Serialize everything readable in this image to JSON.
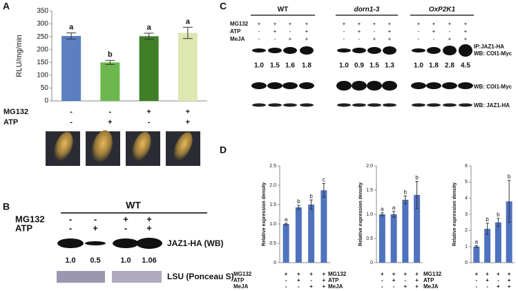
{
  "panel_labels": [
    "A",
    "B",
    "C",
    "D"
  ],
  "chart_data": [
    {
      "type": "bar",
      "y_label": "RLU/mg/min",
      "values": [
        253,
        150,
        252,
        265
      ],
      "errors": [
        12,
        8,
        12,
        22
      ],
      "colors": [
        "#5b7fc1",
        "#6cb84f",
        "#3f7f27",
        "#dde7b0"
      ],
      "annotations": [
        "a",
        "b",
        "a",
        "a"
      ],
      "ylim": [
        0,
        350
      ],
      "yticks": [
        0,
        50,
        100,
        150,
        200,
        250,
        300,
        350
      ],
      "treatments": [
        {
          "name": "MG132",
          "signs": [
            "-",
            "-",
            "+",
            "+"
          ]
        },
        {
          "name": "ATP",
          "signs": [
            "-",
            "+",
            "-",
            "+"
          ]
        }
      ]
    },
    {
      "type": "bar",
      "y_label": "Relative expression density",
      "values": [
        1.0,
        1.43,
        1.5,
        1.87
      ],
      "errors": [
        0.02,
        0.05,
        0.12,
        0.18
      ],
      "color": "#4f72be",
      "annotations": [
        "a",
        "b",
        "b",
        "c"
      ],
      "ylim": [
        0,
        2.5
      ],
      "yticks": [
        0,
        0.5,
        {
          "value": 1,
          "label": "1.0"
        },
        1.5,
        {
          "value": 2,
          "label": "2.0"
        },
        2.5
      ],
      "treatments": [
        {
          "name": "MG132",
          "signs": [
            "+",
            "+",
            "+",
            "+"
          ]
        },
        {
          "name": "ATP",
          "signs": [
            "-",
            "+",
            "-",
            "+"
          ]
        },
        {
          "name": "MeJA",
          "signs": [
            "-",
            "-",
            "+",
            "+"
          ]
        }
      ]
    },
    {
      "type": "bar",
      "y_label": "Relative expression density",
      "values": [
        1.0,
        1.0,
        1.3,
        1.4
      ],
      "errors": [
        0.03,
        0.06,
        0.08,
        0.28
      ],
      "color": "#4f72be",
      "annotations": [
        "a",
        "a",
        "b",
        "b"
      ],
      "ylim": [
        0,
        2
      ],
      "yticks": [
        0,
        0.5,
        {
          "value": 1,
          "label": "1.0"
        },
        1.5,
        {
          "value": 2,
          "label": "2.0"
        }
      ],
      "treatments": [
        {
          "name": "MG132",
          "signs": [
            "+",
            "+",
            "+",
            "+"
          ]
        },
        {
          "name": "ATP",
          "signs": [
            "-",
            "+",
            "-",
            "+"
          ]
        },
        {
          "name": "MeJA",
          "signs": [
            "-",
            "-",
            "+",
            "+"
          ]
        }
      ]
    },
    {
      "type": "bar",
      "y_label": "Relative expression density",
      "values": [
        1.0,
        2.1,
        2.5,
        3.8
      ],
      "errors": [
        0.05,
        0.35,
        0.25,
        1.3
      ],
      "color": "#4f72be",
      "annotations": [
        "a",
        "b",
        "b",
        "b"
      ],
      "ylim": [
        0,
        6
      ],
      "yticks": [
        0,
        1,
        2,
        3,
        4,
        5,
        6
      ],
      "treatments": [
        {
          "name": "MG132",
          "signs": [
            "+",
            "+",
            "+",
            "+"
          ]
        },
        {
          "name": "ATP",
          "signs": [
            "-",
            "+",
            "-",
            "+"
          ]
        },
        {
          "name": "MeJA",
          "signs": [
            "-",
            "-",
            "+",
            "+"
          ]
        }
      ]
    }
  ],
  "blot_b": {
    "genotype": "WT",
    "treatments": [
      {
        "name": "MG132",
        "signs": [
          "-",
          "-",
          "+",
          "+"
        ]
      },
      {
        "name": "ATP",
        "signs": [
          "-",
          "+",
          "-",
          "+"
        ]
      }
    ],
    "band_label": "JAZ1-HA (WB)",
    "quantities": [
      "1.0",
      "0.5",
      "1.0",
      "1.06"
    ],
    "loading_label": "LSU (Ponceau S)"
  },
  "blot_c": {
    "treatment_names": [
      "MG132",
      "ATP",
      "MeJA"
    ],
    "groups": [
      {
        "name": "WT",
        "signs": [
          [
            "+",
            "+",
            "+",
            "+"
          ],
          [
            "-",
            "+",
            "-",
            "+"
          ],
          [
            "-",
            "-",
            "+",
            "+"
          ]
        ],
        "quantities": [
          "1.0",
          "1.5",
          "1.6",
          "1.8"
        ]
      },
      {
        "name": "dorn1-3",
        "signs": [
          [
            "+",
            "+",
            "+",
            "+"
          ],
          [
            "-",
            "+",
            "-",
            "+"
          ],
          [
            "-",
            "-",
            "+",
            "+"
          ]
        ],
        "quantities": [
          "1.0",
          "0.9",
          "1.5",
          "1.3"
        ]
      },
      {
        "name": "OxP2K1",
        "signs": [
          [
            "+",
            "+",
            "+",
            "+"
          ],
          [
            "-",
            "+",
            "-",
            "+"
          ],
          [
            "-",
            "-",
            "+",
            "+"
          ]
        ],
        "quantities": [
          "1.0",
          "1.8",
          "2.8",
          "4.5"
        ]
      }
    ],
    "labels": [
      "IP:JAZ1-HA",
      "WB: COI1-Myc",
      "WB: COI1-Myc",
      "WB: JAZ1-HA"
    ]
  }
}
